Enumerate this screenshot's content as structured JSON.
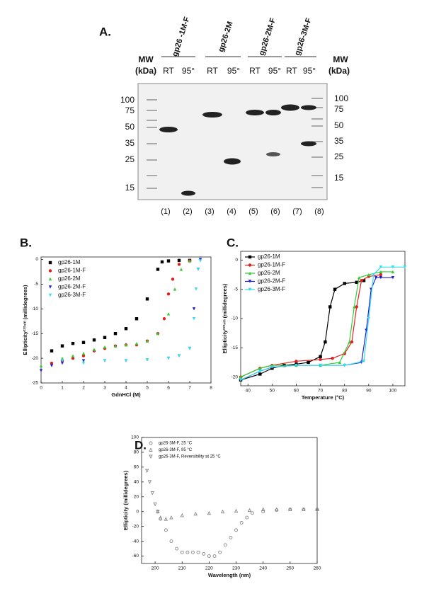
{
  "gel": {
    "panel_label": "A.",
    "groups": [
      "gp26 -1M-F",
      "gp26-2M",
      "gp26-2M-F",
      "gp26-3M-F"
    ],
    "conditions": [
      "RT",
      "95°",
      "RT",
      "95°",
      "RT",
      "95°",
      "RT",
      "95°"
    ],
    "mw_title": "MW",
    "mw_unit": "(kDa)",
    "mw_left": [
      100,
      75,
      50,
      35,
      25,
      15
    ],
    "mw_right": [
      100,
      75,
      50,
      35,
      25,
      15
    ],
    "lanes": [
      "(1)",
      "(2)",
      "(3)",
      "(4)",
      "(5)",
      "(6)",
      "(7)",
      "(8)"
    ]
  },
  "chart_data": [
    {
      "type": "scatter",
      "panel_label": "B.",
      "xlabel": "GdnHCl (M)",
      "ylabel": "Ellipticity²²²ⁿᵐ (millidegrees)",
      "xlim": [
        0,
        8
      ],
      "ylim": [
        -25,
        0.5
      ],
      "xticks": [
        0,
        1,
        2,
        3,
        4,
        5,
        6,
        7,
        8
      ],
      "yticks": [
        0,
        -5,
        -10,
        -15,
        -20,
        -25
      ],
      "legend": "upper left",
      "marker_style": "filled",
      "series": [
        {
          "name": "gp26-1M",
          "color": "#000000",
          "marker": "square",
          "x": [
            0.5,
            1,
            1.5,
            2,
            2.5,
            3,
            3.5,
            4,
            4.5,
            5,
            5.5,
            5.7,
            6,
            6.5,
            7
          ],
          "values": [
            -18.5,
            -17.5,
            -17,
            -16.8,
            -16.3,
            -15.8,
            -15,
            -14,
            -12,
            -8,
            -2,
            -0.5,
            -0.3,
            -0.2,
            -0.2
          ]
        },
        {
          "name": "gp26-1M-F",
          "color": "#e02020",
          "marker": "circle",
          "x": [
            0.5,
            1,
            1.5,
            2,
            2.5,
            3,
            3.5,
            4,
            4.5,
            5,
            5.5,
            5.8,
            6,
            6.2,
            6.5,
            7
          ],
          "values": [
            -21,
            -20.5,
            -20,
            -19.5,
            -18.5,
            -18,
            -17.5,
            -17.3,
            -17.3,
            -16.5,
            -15,
            -12,
            -7,
            -4,
            -1,
            -0.3
          ]
        },
        {
          "name": "gp26-2M",
          "color": "#33cc33",
          "marker": "triangle-up",
          "x": [
            0,
            1,
            1.5,
            2,
            2.5,
            3,
            3.5,
            4,
            4.5,
            5,
            5.5,
            6,
            6.3,
            6.6,
            7
          ],
          "values": [
            -21.5,
            -20,
            -19.5,
            -19,
            -18.2,
            -17.7,
            -17.5,
            -17.3,
            -17,
            -16.5,
            -15,
            -11,
            -6,
            -2,
            -0.3
          ]
        },
        {
          "name": "gp26-2M-F",
          "color": "#2020d0",
          "marker": "triangle-down",
          "x": [
            0,
            0.5,
            1,
            2,
            3,
            4,
            5,
            6,
            6.5,
            7,
            7.2,
            7.4,
            7.5
          ],
          "values": [
            -22.5,
            -21.5,
            -21,
            -20.5,
            -20.5,
            -20.5,
            -20.3,
            -20,
            -19.5,
            -18,
            -10,
            -2,
            0
          ]
        },
        {
          "name": "gp26-3M-F",
          "color": "#33ddee",
          "marker": "triangle-down",
          "x": [
            1,
            2,
            3,
            4,
            5,
            6,
            6.5,
            7,
            7.2,
            7.3,
            7.4,
            7.5
          ],
          "values": [
            -20.5,
            -21,
            -20.5,
            -20.5,
            -20.3,
            -20,
            -19.5,
            -18,
            -12,
            -6,
            -2,
            -0.3
          ]
        }
      ]
    },
    {
      "type": "line",
      "panel_label": "C.",
      "xlabel": "Temperature (°C)",
      "ylabel": "Ellipticity²²²ⁿᵐ (millidegrees)",
      "xlim": [
        37,
        105
      ],
      "ylim": [
        -21.5,
        1.5
      ],
      "xticks": [
        40,
        50,
        60,
        70,
        80,
        90,
        100
      ],
      "yticks": [
        0,
        -5,
        -10,
        -15,
        -20
      ],
      "legend": "upper left",
      "marker_style": "filled",
      "series": [
        {
          "name": "gp26-1M",
          "color": "#000000",
          "marker": "square",
          "x": [
            37,
            45,
            50,
            55,
            60,
            65,
            70,
            72,
            74,
            76,
            80,
            85,
            88
          ],
          "values": [
            -20.5,
            -19.5,
            -18.5,
            -18,
            -17.8,
            -17.5,
            -16.5,
            -14,
            -8,
            -5,
            -4,
            -3.8,
            -3.5
          ]
        },
        {
          "name": "gp26-1M-F",
          "color": "#e02020",
          "marker": "circle",
          "x": [
            37,
            45,
            50,
            60,
            70,
            75,
            80,
            83,
            85,
            87,
            90,
            95
          ],
          "values": [
            -20,
            -18.5,
            -18,
            -17.3,
            -17,
            -16.8,
            -16,
            -14,
            -8,
            -3.5,
            -2.8,
            -2.5
          ]
        },
        {
          "name": "gp26-2M",
          "color": "#33cc33",
          "marker": "triangle-up",
          "x": [
            37,
            45,
            50,
            60,
            70,
            78,
            82,
            84,
            86,
            90,
            95,
            100
          ],
          "values": [
            -20,
            -18.5,
            -18,
            -18,
            -18,
            -17.5,
            -14,
            -8,
            -3,
            -2.5,
            -2,
            -2
          ]
        },
        {
          "name": "gp26-2M-F",
          "color": "#2020d0",
          "marker": "triangle-down",
          "x": [
            37,
            45,
            50,
            60,
            70,
            80,
            87,
            89,
            91,
            93,
            95,
            100
          ],
          "values": [
            -20.5,
            -19,
            -18.3,
            -18,
            -18,
            -18,
            -17.5,
            -12,
            -5,
            -3,
            -3,
            -3
          ]
        },
        {
          "name": "gp26-3M-F",
          "color": "#33ddee",
          "marker": "triangle-down",
          "x": [
            37,
            45,
            50,
            60,
            70,
            80,
            88,
            90,
            92,
            95,
            100,
            105
          ],
          "values": [
            -20.5,
            -19,
            -18.3,
            -18,
            -18,
            -18,
            -17.3,
            -10,
            -2.5,
            -1.2,
            -1.2,
            -1.2
          ]
        }
      ]
    },
    {
      "type": "scatter",
      "panel_label": "D.",
      "xlabel": "Wavelength (nm)",
      "ylabel": "Ellipticity (millidegrees)",
      "xlim": [
        195,
        260
      ],
      "ylim": [
        -70,
        100
      ],
      "xticks": [
        200,
        210,
        220,
        230,
        240,
        250,
        260
      ],
      "yticks": [
        100,
        80,
        60,
        40,
        20,
        0,
        -20,
        -40,
        -60
      ],
      "legend": "upper left",
      "marker_style": "open",
      "series": [
        {
          "name": "gp26-3M-F, 25 °C",
          "color": "#888888",
          "marker": "circle",
          "x": [
            202,
            204,
            206,
            208,
            210,
            212,
            214,
            216,
            218,
            220,
            222,
            224,
            226,
            228,
            230,
            232,
            234,
            236,
            240,
            245,
            250,
            255,
            260
          ],
          "values": [
            -10,
            -25,
            -40,
            -50,
            -55,
            -55,
            -55,
            -55,
            -57,
            -60,
            -60,
            -55,
            -45,
            -35,
            -25,
            -15,
            -8,
            -2,
            0,
            2,
            3,
            3,
            3
          ]
        },
        {
          "name": "gp26-3M-F, 95 °C",
          "color": "#888888",
          "marker": "triangle-up",
          "x": [
            201,
            202,
            204,
            206,
            210,
            215,
            220,
            225,
            230,
            235,
            240,
            245,
            250,
            255,
            260
          ],
          "values": [
            0,
            -8,
            -10,
            -8,
            -5,
            -3,
            -2,
            0,
            1,
            2,
            3,
            3,
            3,
            3,
            3
          ]
        },
        {
          "name": "gp26-3M-F, Reversibility at 25 °C",
          "color": "#888888",
          "marker": "triangle-down",
          "x": [
            197,
            198,
            199,
            200,
            201
          ],
          "values": [
            55,
            40,
            25,
            10,
            0
          ]
        }
      ]
    }
  ]
}
